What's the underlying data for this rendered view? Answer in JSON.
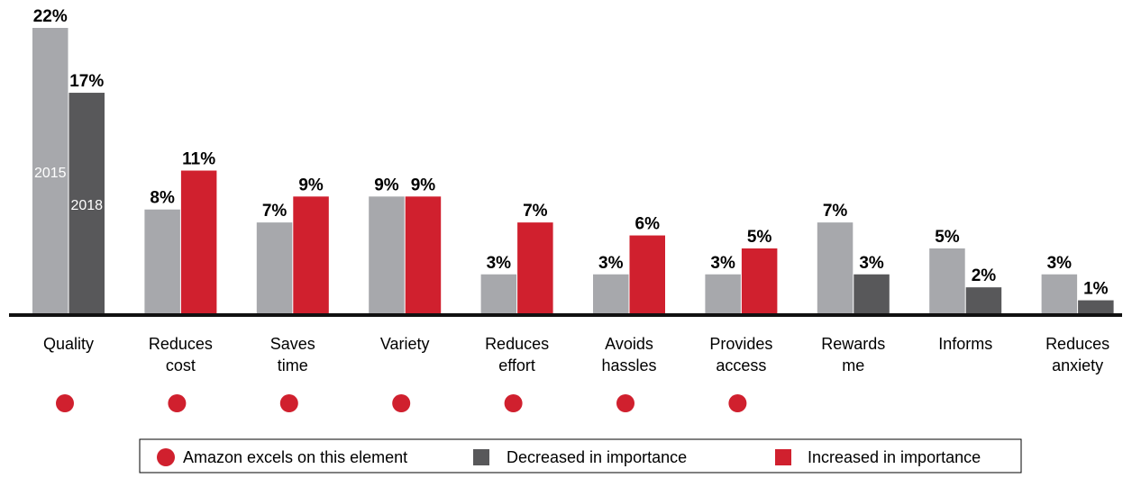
{
  "chart_data": {
    "type": "bar",
    "series": [
      {
        "name": "2015",
        "color": "#A7A8AC"
      },
      {
        "name": "2018"
      }
    ],
    "categories": [
      {
        "label": [
          "Quality"
        ],
        "v2015": 22,
        "v2018": 17,
        "change": "decreased",
        "amazon_excels": true
      },
      {
        "label": [
          "Reduces",
          "cost"
        ],
        "v2015": 8,
        "v2018": 11,
        "change": "increased",
        "amazon_excels": true
      },
      {
        "label": [
          "Saves",
          "time"
        ],
        "v2015": 7,
        "v2018": 9,
        "change": "increased",
        "amazon_excels": true
      },
      {
        "label": [
          "Variety"
        ],
        "v2015": 9,
        "v2018": 9,
        "change": "increased",
        "amazon_excels": true
      },
      {
        "label": [
          "Reduces",
          "effort"
        ],
        "v2015": 3,
        "v2018": 7,
        "change": "increased",
        "amazon_excels": true
      },
      {
        "label": [
          "Avoids",
          "hassles"
        ],
        "v2015": 3,
        "v2018": 6,
        "change": "increased",
        "amazon_excels": true
      },
      {
        "label": [
          "Provides",
          "access"
        ],
        "v2015": 3,
        "v2018": 5,
        "change": "increased",
        "amazon_excels": true
      },
      {
        "label": [
          "Rewards",
          "me"
        ],
        "v2015": 7,
        "v2018": 3,
        "change": "decreased",
        "amazon_excels": false
      },
      {
        "label": [
          "Informs"
        ],
        "v2015": 5,
        "v2018": 2,
        "change": "decreased",
        "amazon_excels": false
      },
      {
        "label": [
          "Reduces",
          "anxiety"
        ],
        "v2015": 3,
        "v2018": 1,
        "change": "decreased",
        "amazon_excels": false
      }
    ],
    "value_suffix": "%",
    "ylim": [
      0,
      22
    ],
    "grid": false,
    "colors": {
      "base_2015": "#A7A8AC",
      "decreased": "#58585A",
      "increased": "#D0202E",
      "amazon_dot": "#D0202E",
      "axis": "#111111"
    },
    "legend": {
      "position": "bottom",
      "items": [
        {
          "marker": "circle",
          "color": "#D0202E",
          "label": "Amazon excels on this element"
        },
        {
          "marker": "square",
          "color": "#58585A",
          "label": "Decreased in importance"
        },
        {
          "marker": "square",
          "color": "#D0202E",
          "label": "Increased in importance"
        }
      ]
    }
  }
}
